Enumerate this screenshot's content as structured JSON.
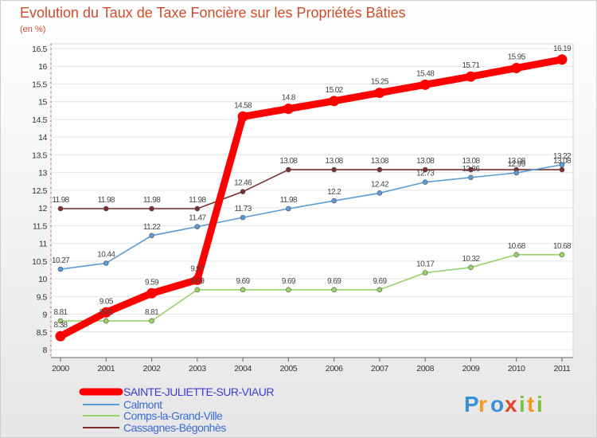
{
  "chart_data": {
    "type": "line",
    "title": "Evolution du Taux de Taxe Foncière sur les Propriétés Bâties",
    "ylabel": "(en %)",
    "xlabel": "",
    "ylim": [
      8,
      16.5
    ],
    "yticks": [
      "8",
      "8.5",
      "9",
      "9.5",
      "10",
      "10.5",
      "11",
      "11.5",
      "12",
      "12.5",
      "13",
      "13.5",
      "14",
      "14.5",
      "15",
      "15.5",
      "16",
      "16.5"
    ],
    "categories": [
      "2000",
      "2001",
      "2002",
      "2003",
      "2004",
      "2005",
      "2006",
      "2007",
      "2008",
      "2009",
      "2010",
      "2011"
    ],
    "series": [
      {
        "name": "SAINTE-JULIETTE-SUR-VIAUR",
        "color": "#ff0000",
        "values": [
          8.38,
          9.05,
          9.59,
          9.97,
          14.58,
          14.8,
          15.02,
          15.25,
          15.48,
          15.71,
          15.95,
          16.19
        ],
        "labels": [
          "8.38",
          "9.05",
          "9.59",
          "9.97",
          "14.58",
          "14.8",
          "15.02",
          "15.25",
          "15.48",
          "15.71",
          "15.95",
          "16.19"
        ]
      },
      {
        "name": "Calmont",
        "color": "#5b9bd5",
        "values": [
          10.27,
          10.44,
          11.22,
          11.47,
          11.73,
          11.98,
          12.2,
          12.42,
          12.73,
          12.86,
          12.99,
          13.22
        ],
        "labels": [
          "10.27",
          "10.44",
          "11.22",
          "11.47",
          "11.73",
          "11.98",
          "12.2",
          "12.42",
          "12.73",
          "12.86",
          "12.99",
          "13.22"
        ]
      },
      {
        "name": "Comps-la-Grand-Ville",
        "color": "#99d26b",
        "values": [
          8.81,
          8.81,
          8.81,
          9.69,
          9.69,
          9.69,
          9.69,
          9.69,
          10.17,
          10.32,
          10.68,
          10.68
        ],
        "labels": [
          "8.81",
          "8.81",
          "8.81",
          "9.69",
          "9.69",
          "9.69",
          "9.69",
          "9.69",
          "10.17",
          "10.32",
          "10.68",
          "10.68"
        ]
      },
      {
        "name": "Cassagnes-Bégonhès",
        "color": "#7a2f2f",
        "values": [
          11.98,
          11.98,
          11.98,
          11.98,
          12.46,
          13.08,
          13.08,
          13.08,
          13.08,
          13.08,
          13.08,
          13.08
        ],
        "labels": [
          "11.98",
          "11.98",
          "11.98",
          "11.98",
          "12.46",
          "13.08",
          "13.08",
          "13.08",
          "13.08",
          "13.08",
          "13.08",
          "13.08"
        ]
      }
    ],
    "legend": [
      "SAINTE-JULIETTE-SUR-VIAUR",
      "Calmont",
      "Comps-la-Grand-Ville",
      "Cassagnes-Bégonhès"
    ],
    "legend_position": "bottom-left"
  },
  "brand": {
    "letters": [
      "P",
      "r",
      "o",
      "x",
      "i",
      "t",
      "i"
    ],
    "colors": [
      "#3a8fd8",
      "#f29a1f",
      "#3a8fd8",
      "#e0452a",
      "#7ac143",
      "#f29a1f",
      "#7ac143"
    ]
  }
}
